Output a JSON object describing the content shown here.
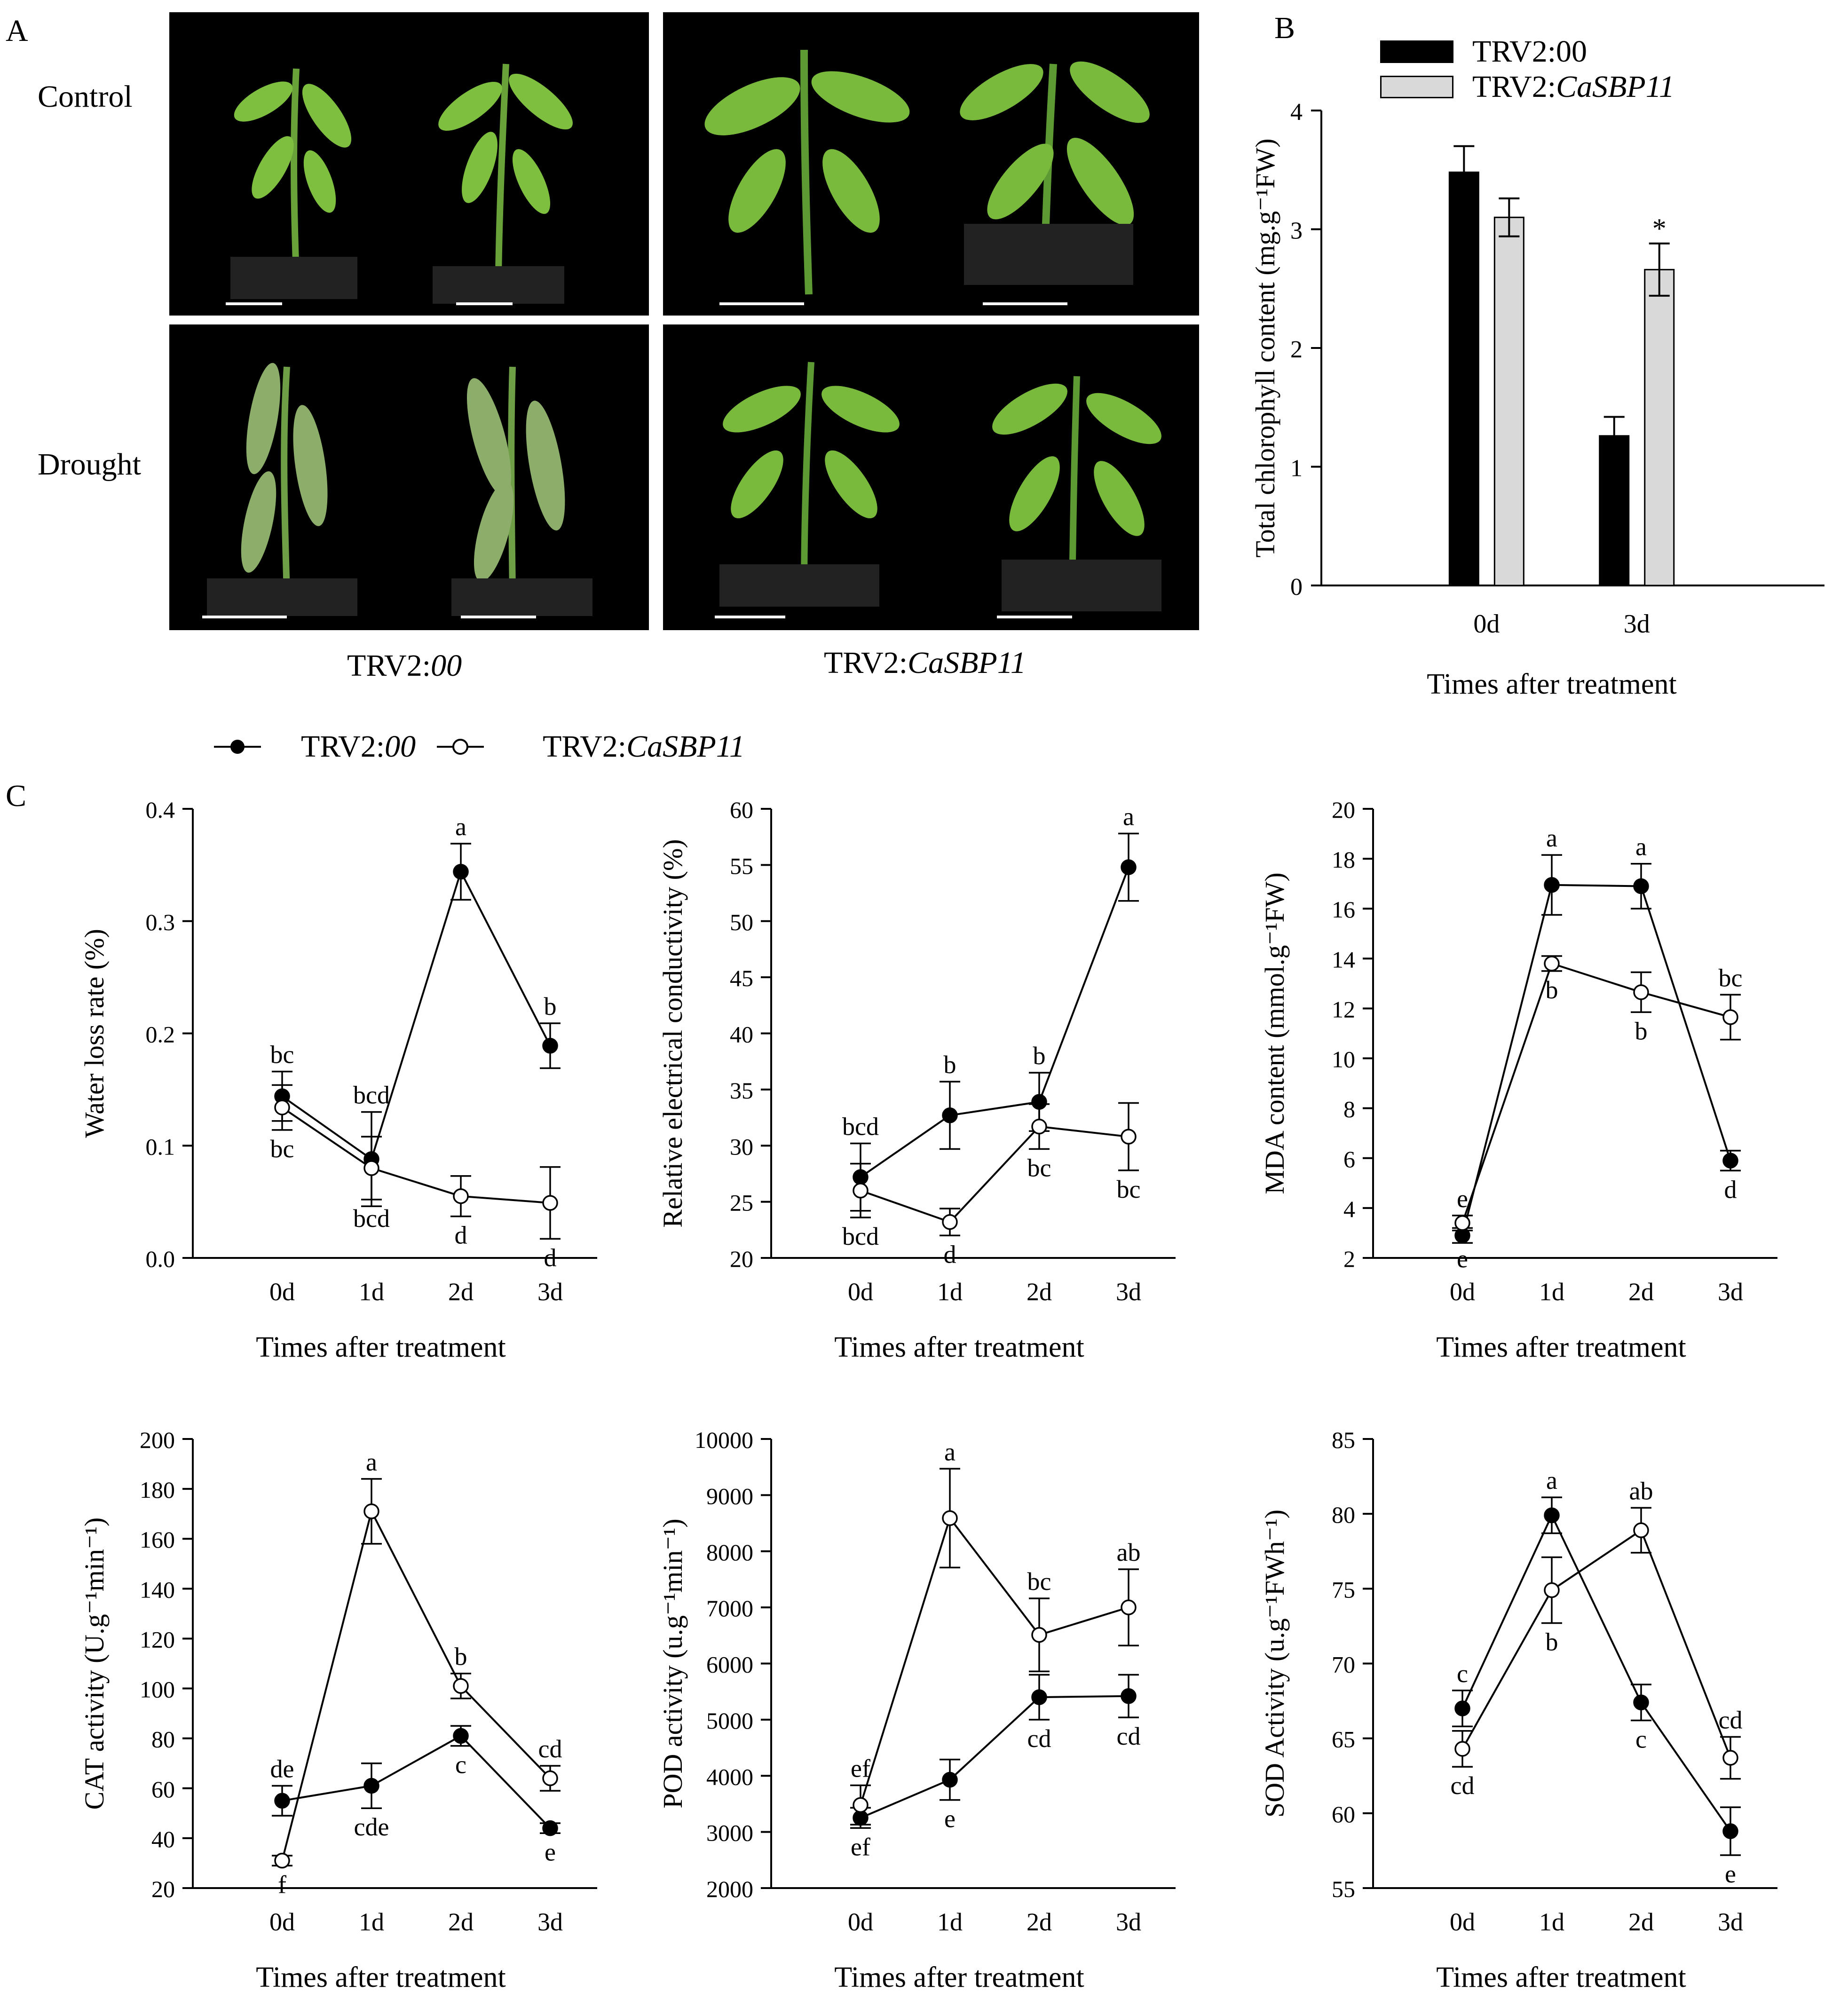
{
  "panelA": {
    "letter": "A",
    "row_labels": [
      "Control",
      "Drought"
    ],
    "col_label_1": {
      "plain": "TRV2:",
      "italic": "00"
    },
    "col_label_2": {
      "plain": "TRV2:",
      "italic": "CaSBP11"
    }
  },
  "panelB": {
    "letter": "B",
    "legend": [
      {
        "plain": "TRV2:00",
        "italic": "",
        "color": "#000000"
      },
      {
        "plain": "TRV2:",
        "italic": "CaSBP11",
        "color": "#d9d9d9"
      }
    ],
    "ylabel": "Total chlorophyll content (mg.g⁻¹FW)",
    "xlabel": "Times after treatment",
    "significance": "*"
  },
  "panelC": {
    "letter": "C",
    "legend": [
      {
        "plain": "TRV2:",
        "italic": "00",
        "marker": "filled"
      },
      {
        "plain": "TRV2:",
        "italic": "CaSBP11",
        "marker": "open"
      }
    ]
  },
  "chart_data": [
    {
      "id": "chlorophyll",
      "type": "bar",
      "categories": [
        "0d",
        "3d"
      ],
      "ylabel": "Total chlorophyll content (mg.g⁻¹FW)",
      "xlabel": "Times after treatment",
      "ylim": [
        0,
        4
      ],
      "yticks": [
        0,
        1,
        2,
        3,
        4
      ],
      "series": [
        {
          "name": "TRV2:00",
          "color": "#000000",
          "values": [
            3.48,
            1.26
          ],
          "errors": [
            0.22,
            0.16
          ]
        },
        {
          "name": "TRV2:CaSBP11",
          "color": "#d9d9d9",
          "values": [
            3.1,
            2.66
          ],
          "errors": [
            0.16,
            0.22
          ]
        }
      ],
      "annotations": [
        {
          "category": "3d",
          "series": 1,
          "text": "*"
        }
      ]
    },
    {
      "id": "water-loss",
      "type": "line",
      "categories": [
        "0d",
        "1d",
        "2d",
        "3d"
      ],
      "ylabel": "Water loss rate (%)",
      "xlabel": "Times after treatment",
      "ylim": [
        0,
        0.4
      ],
      "yticks": [
        "0.0",
        "0.1",
        "0.2",
        "0.3",
        "0.4"
      ],
      "series": [
        {
          "name": "TRV2:00",
          "marker": "filled",
          "values": [
            0.144,
            0.088,
            0.344,
            0.189
          ],
          "errors": [
            0.022,
            0.042,
            0.025,
            0.02
          ],
          "labels": [
            "bc",
            "bcd",
            "a",
            "b"
          ]
        },
        {
          "name": "TRV2:CaSBP11",
          "marker": "open",
          "values": [
            0.134,
            0.08,
            0.055,
            0.049
          ],
          "errors": [
            0.02,
            0.028,
            0.018,
            0.032
          ],
          "labels": [
            "bc",
            "bcd",
            "d",
            "d"
          ]
        }
      ]
    },
    {
      "id": "electrical-conductivity",
      "type": "line",
      "categories": [
        "0d",
        "1d",
        "2d",
        "3d"
      ],
      "ylabel": "Relative electrical conductivity (%)",
      "xlabel": "Times after treatment",
      "ylim": [
        20,
        60
      ],
      "yticks": [
        "20",
        "25",
        "30",
        "35",
        "40",
        "45",
        "50",
        "55",
        "60"
      ],
      "series": [
        {
          "name": "TRV2:00",
          "marker": "filled",
          "values": [
            27.2,
            32.7,
            33.9,
            54.8
          ],
          "errors": [
            3.0,
            3.0,
            2.6,
            3.0
          ],
          "labels": [
            "bcd",
            "b",
            "b",
            "a"
          ]
        },
        {
          "name": "TRV2:CaSBP11",
          "marker": "open",
          "values": [
            26.0,
            23.2,
            31.7,
            30.8
          ],
          "errors": [
            2.4,
            1.2,
            2.0,
            3.0
          ],
          "labels": [
            "bcd",
            "d",
            "bc",
            "bc"
          ]
        }
      ]
    },
    {
      "id": "mda",
      "type": "line",
      "categories": [
        "0d",
        "1d",
        "2d",
        "3d"
      ],
      "ylabel": "MDA content (mmol.g⁻¹FW)",
      "xlabel": "Times after treatment",
      "ylim": [
        2,
        20
      ],
      "yticks": [
        "2",
        "4",
        "6",
        "8",
        "10",
        "12",
        "14",
        "16",
        "18",
        "20"
      ],
      "series": [
        {
          "name": "TRV2:00",
          "marker": "filled",
          "values": [
            2.9,
            16.95,
            16.9,
            5.9
          ],
          "errors": [
            0.3,
            1.2,
            0.9,
            0.4
          ],
          "labels": [
            "e",
            "a",
            "a",
            "d"
          ]
        },
        {
          "name": "TRV2:CaSBP11",
          "marker": "open",
          "values": [
            3.4,
            13.8,
            12.65,
            11.65
          ],
          "errors": [
            0.3,
            0.3,
            0.8,
            0.9
          ],
          "labels": [
            "e",
            "b",
            "b",
            "bc"
          ]
        }
      ]
    },
    {
      "id": "cat",
      "type": "line",
      "categories": [
        "0d",
        "1d",
        "2d",
        "3d"
      ],
      "ylabel": "CAT activity (U.g⁻¹min⁻¹)",
      "xlabel": "Times after treatment",
      "ylim": [
        20,
        200
      ],
      "yticks": [
        "20",
        "40",
        "60",
        "80",
        "100",
        "120",
        "140",
        "160",
        "180",
        "200"
      ],
      "series": [
        {
          "name": "TRV2:00",
          "marker": "filled",
          "values": [
            55,
            61,
            81,
            44
          ],
          "errors": [
            6,
            9,
            4,
            2
          ],
          "labels": [
            "de",
            "cde",
            "c",
            "e"
          ]
        },
        {
          "name": "TRV2:CaSBP11",
          "marker": "open",
          "values": [
            31,
            171,
            101,
            64
          ],
          "errors": [
            2,
            13,
            5,
            5
          ],
          "labels": [
            "f",
            "a",
            "b",
            "cd"
          ]
        }
      ]
    },
    {
      "id": "pod",
      "type": "line",
      "categories": [
        "0d",
        "1d",
        "2d",
        "3d"
      ],
      "ylabel": "POD activity (u.g⁻¹min⁻¹)",
      "xlabel": "Times after treatment",
      "ylim": [
        2000,
        10000
      ],
      "yticks": [
        "2000",
        "3000",
        "4000",
        "5000",
        "6000",
        "7000",
        "8000",
        "9000",
        "10000"
      ],
      "series": [
        {
          "name": "TRV2:00",
          "marker": "filled",
          "values": [
            3250,
            3930,
            5400,
            5420
          ],
          "errors": [
            180,
            360,
            400,
            380
          ],
          "labels": [
            "ef",
            "e",
            "cd",
            "cd"
          ]
        },
        {
          "name": "TRV2:CaSBP11",
          "marker": "open",
          "values": [
            3480,
            8590,
            6510,
            7000
          ],
          "errors": [
            350,
            880,
            650,
            680
          ],
          "labels": [
            "ef",
            "a",
            "bc",
            "ab"
          ]
        }
      ]
    },
    {
      "id": "sod",
      "type": "line",
      "categories": [
        "0d",
        "1d",
        "2d",
        "3d"
      ],
      "ylabel": "SOD Activity (u.g⁻¹FWh⁻¹)",
      "xlabel": "Times after treatment",
      "ylim": [
        55,
        85
      ],
      "yticks": [
        "55",
        "60",
        "65",
        "70",
        "75",
        "80",
        "85"
      ],
      "series": [
        {
          "name": "TRV2:00",
          "marker": "filled",
          "values": [
            67.0,
            79.9,
            67.4,
            58.8
          ],
          "errors": [
            1.2,
            1.2,
            1.2,
            1.6
          ],
          "labels": [
            "c",
            "a",
            "c",
            "e"
          ]
        },
        {
          "name": "TRV2:CaSBP11",
          "marker": "open",
          "values": [
            64.3,
            74.9,
            78.9,
            63.7
          ],
          "errors": [
            1.2,
            2.2,
            1.5,
            1.4
          ],
          "labels": [
            "cd",
            "b",
            "ab",
            "cd"
          ]
        }
      ]
    }
  ]
}
